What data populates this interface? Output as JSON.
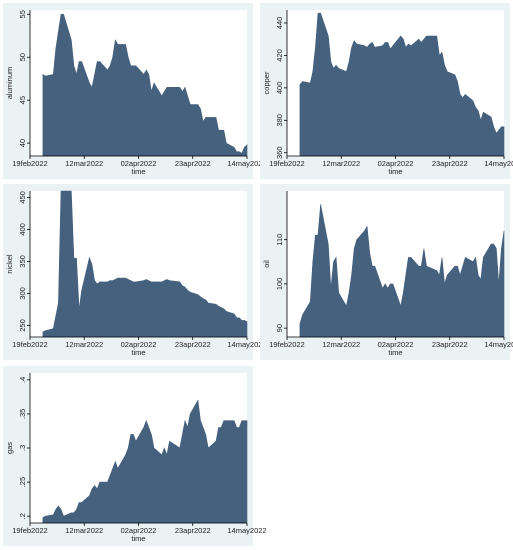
{
  "chart_data": [
    {
      "type": "area",
      "ylabel": "aluminum",
      "xlabel": "time",
      "xlim": [
        "2022-02-19",
        "2022-05-14"
      ],
      "ylim": [
        38.5,
        55.5
      ],
      "xticks": [
        "19feb2022",
        "12mar2022",
        "02apr2022",
        "23apr2022",
        "14may2022"
      ],
      "yticks": [
        40,
        45,
        50,
        55
      ],
      "color": "#45617e",
      "series": [
        {
          "x": [
            "2022-02-24",
            "2022-02-25",
            "2022-02-28",
            "2022-03-01",
            "2022-03-02",
            "2022-03-03",
            "2022-03-04",
            "2022-03-07",
            "2022-03-08",
            "2022-03-09",
            "2022-03-10",
            "2022-03-11",
            "2022-03-14",
            "2022-03-15",
            "2022-03-16",
            "2022-03-17",
            "2022-03-18",
            "2022-03-21",
            "2022-03-22",
            "2022-03-23",
            "2022-03-24",
            "2022-03-25",
            "2022-03-28",
            "2022-03-29",
            "2022-03-30",
            "2022-03-31",
            "2022-04-01",
            "2022-04-04",
            "2022-04-05",
            "2022-04-06",
            "2022-04-07",
            "2022-04-08",
            "2022-04-11",
            "2022-04-12",
            "2022-04-13",
            "2022-04-14",
            "2022-04-18",
            "2022-04-19",
            "2022-04-20",
            "2022-04-21",
            "2022-04-22",
            "2022-04-25",
            "2022-04-26",
            "2022-04-27",
            "2022-04-28",
            "2022-04-29",
            "2022-05-02",
            "2022-05-03",
            "2022-05-04",
            "2022-05-05",
            "2022-05-06",
            "2022-05-09",
            "2022-05-10",
            "2022-05-11",
            "2022-05-12",
            "2022-05-13",
            "2022-05-16"
          ],
          "values": [
            48,
            47.8,
            48,
            51,
            53,
            55,
            55,
            52,
            49,
            48,
            49.5,
            49.5,
            47,
            46.5,
            48,
            49.5,
            49.5,
            48.5,
            49,
            50,
            52,
            51.5,
            51.5,
            50,
            49,
            49,
            49,
            48,
            48.5,
            48,
            46,
            47,
            45.5,
            46,
            46.5,
            46.5,
            46.5,
            46,
            46.5,
            45.5,
            44.5,
            44.5,
            44,
            42.5,
            43,
            43,
            43,
            41.5,
            41.5,
            41.5,
            40,
            39.5,
            39,
            39,
            38.8,
            39.5,
            39.8
          ]
        }
      ]
    },
    {
      "type": "area",
      "ylabel": "copper",
      "xlabel": "time",
      "xlim": [
        "2022-02-19",
        "2022-05-14"
      ],
      "ylim": [
        358,
        448
      ],
      "xticks": [
        "19feb2022",
        "12mar2022",
        "02apr2022",
        "23apr2022",
        "14may2022"
      ],
      "yticks": [
        360,
        380,
        400,
        420,
        440
      ],
      "color": "#45617e",
      "series": [
        {
          "x": [
            "2022-02-24",
            "2022-02-25",
            "2022-02-28",
            "2022-03-01",
            "2022-03-02",
            "2022-03-03",
            "2022-03-04",
            "2022-03-07",
            "2022-03-08",
            "2022-03-09",
            "2022-03-10",
            "2022-03-11",
            "2022-03-14",
            "2022-03-15",
            "2022-03-16",
            "2022-03-17",
            "2022-03-18",
            "2022-03-21",
            "2022-03-22",
            "2022-03-23",
            "2022-03-24",
            "2022-03-25",
            "2022-03-28",
            "2022-03-29",
            "2022-03-30",
            "2022-03-31",
            "2022-04-01",
            "2022-04-04",
            "2022-04-05",
            "2022-04-06",
            "2022-04-07",
            "2022-04-08",
            "2022-04-11",
            "2022-04-12",
            "2022-04-13",
            "2022-04-14",
            "2022-04-18",
            "2022-04-19",
            "2022-04-20",
            "2022-04-21",
            "2022-04-22",
            "2022-04-25",
            "2022-04-26",
            "2022-04-27",
            "2022-04-28",
            "2022-04-29",
            "2022-05-02",
            "2022-05-03",
            "2022-05-04",
            "2022-05-05",
            "2022-05-06",
            "2022-05-09",
            "2022-05-10",
            "2022-05-11",
            "2022-05-12",
            "2022-05-13",
            "2022-05-16"
          ],
          "values": [
            402,
            404,
            403,
            410,
            425,
            446,
            446,
            432,
            416,
            412,
            414,
            412,
            410,
            416,
            425,
            429,
            427,
            426,
            425,
            427,
            428,
            425,
            426,
            428,
            428,
            424,
            426,
            432,
            430,
            425,
            427,
            426,
            430,
            428,
            430,
            432,
            432,
            420,
            422,
            414,
            410,
            408,
            404,
            396,
            394,
            396,
            392,
            388,
            386,
            380,
            385,
            382,
            376,
            372,
            374,
            376,
            376
          ]
        }
      ]
    },
    {
      "type": "area",
      "ylabel": "nickel",
      "xlabel": "time",
      "xlim": [
        "2022-02-19",
        "2022-05-14"
      ],
      "ylim": [
        232,
        460
      ],
      "xticks": [
        "19feb2022",
        "12mar2022",
        "02apr2022",
        "23apr2022",
        "14may2022"
      ],
      "yticks": [
        250,
        300,
        350,
        400,
        450
      ],
      "color": "#45617e",
      "series": [
        {
          "x": [
            "2022-02-24",
            "2022-02-25",
            "2022-02-28",
            "2022-03-01",
            "2022-03-02",
            "2022-03-03",
            "2022-03-04",
            "2022-03-07",
            "2022-03-08",
            "2022-03-09",
            "2022-03-10",
            "2022-03-11",
            "2022-03-14",
            "2022-03-15",
            "2022-03-16",
            "2022-03-17",
            "2022-03-18",
            "2022-03-21",
            "2022-03-22",
            "2022-03-23",
            "2022-03-24",
            "2022-03-25",
            "2022-03-28",
            "2022-03-29",
            "2022-03-30",
            "2022-03-31",
            "2022-04-01",
            "2022-04-04",
            "2022-04-05",
            "2022-04-06",
            "2022-04-07",
            "2022-04-08",
            "2022-04-11",
            "2022-04-12",
            "2022-04-13",
            "2022-04-14",
            "2022-04-18",
            "2022-04-19",
            "2022-04-20",
            "2022-04-21",
            "2022-04-22",
            "2022-04-25",
            "2022-04-26",
            "2022-04-27",
            "2022-04-28",
            "2022-04-29",
            "2022-05-02",
            "2022-05-03",
            "2022-05-04",
            "2022-05-05",
            "2022-05-06",
            "2022-05-09",
            "2022-05-10",
            "2022-05-11",
            "2022-05-12",
            "2022-05-13",
            "2022-05-16"
          ],
          "values": [
            240,
            242,
            245,
            265,
            285,
            460,
            460,
            460,
            355,
            355,
            275,
            305,
            356,
            345,
            320,
            315,
            318,
            318,
            320,
            320,
            322,
            324,
            324,
            322,
            320,
            318,
            318,
            320,
            322,
            320,
            318,
            318,
            318,
            320,
            322,
            320,
            318,
            312,
            310,
            305,
            302,
            298,
            295,
            292,
            290,
            285,
            283,
            280,
            278,
            276,
            272,
            268,
            262,
            262,
            258,
            258,
            256
          ]
        }
      ]
    },
    {
      "type": "area",
      "ylabel": "oil",
      "xlabel": "time",
      "xlim": [
        "2022-02-19",
        "2022-05-14"
      ],
      "ylim": [
        88,
        121
      ],
      "xticks": [
        "19feb2022",
        "12mar2022",
        "02apr2022",
        "23apr2022",
        "14may2022"
      ],
      "yticks": [
        90,
        100,
        110
      ],
      "color": "#45617e",
      "series": [
        {
          "x": [
            "2022-02-24",
            "2022-02-25",
            "2022-02-28",
            "2022-03-01",
            "2022-03-02",
            "2022-03-03",
            "2022-03-04",
            "2022-03-07",
            "2022-03-08",
            "2022-03-09",
            "2022-03-10",
            "2022-03-11",
            "2022-03-14",
            "2022-03-15",
            "2022-03-16",
            "2022-03-17",
            "2022-03-18",
            "2022-03-21",
            "2022-03-22",
            "2022-03-23",
            "2022-03-24",
            "2022-03-25",
            "2022-03-28",
            "2022-03-29",
            "2022-03-30",
            "2022-03-31",
            "2022-04-01",
            "2022-04-04",
            "2022-04-05",
            "2022-04-06",
            "2022-04-07",
            "2022-04-08",
            "2022-04-11",
            "2022-04-12",
            "2022-04-13",
            "2022-04-14",
            "2022-04-18",
            "2022-04-19",
            "2022-04-20",
            "2022-04-21",
            "2022-04-22",
            "2022-04-25",
            "2022-04-26",
            "2022-04-27",
            "2022-04-28",
            "2022-04-29",
            "2022-05-02",
            "2022-05-03",
            "2022-05-04",
            "2022-05-05",
            "2022-05-06",
            "2022-05-09",
            "2022-05-10",
            "2022-05-11",
            "2022-05-12",
            "2022-05-13",
            "2022-05-16"
          ],
          "values": [
            91,
            93,
            96,
            105,
            111,
            111,
            118,
            109,
            99,
            105,
            106,
            98,
            95,
            98,
            102,
            108,
            110,
            112,
            113,
            107,
            104,
            104,
            99,
            100,
            99,
            100,
            100,
            95,
            98,
            102,
            106,
            106,
            104,
            104,
            108,
            104,
            103,
            102,
            106,
            100,
            102,
            104,
            104,
            102,
            104,
            106,
            105,
            106,
            102,
            101,
            106,
            109,
            109,
            108,
            100,
            108,
            112
          ]
        }
      ]
    },
    {
      "type": "area",
      "ylabel": "gas",
      "xlabel": "time",
      "xlim": [
        "2022-02-19",
        "2022-05-14"
      ],
      "ylim": [
        0.19,
        0.41
      ],
      "xticks": [
        "19feb2022",
        "12mar2022",
        "02apr2022",
        "23apr2022",
        "14may2022"
      ],
      "yticks": [
        ".2",
        ".25",
        ".3",
        ".35",
        ".4"
      ],
      "color": "#45617e",
      "series": [
        {
          "x": [
            "2022-02-24",
            "2022-02-25",
            "2022-02-28",
            "2022-03-01",
            "2022-03-02",
            "2022-03-03",
            "2022-03-04",
            "2022-03-07",
            "2022-03-08",
            "2022-03-09",
            "2022-03-10",
            "2022-03-11",
            "2022-03-14",
            "2022-03-15",
            "2022-03-16",
            "2022-03-17",
            "2022-03-18",
            "2022-03-21",
            "2022-03-22",
            "2022-03-23",
            "2022-03-24",
            "2022-03-25",
            "2022-03-28",
            "2022-03-29",
            "2022-03-30",
            "2022-03-31",
            "2022-04-01",
            "2022-04-04",
            "2022-04-05",
            "2022-04-06",
            "2022-04-07",
            "2022-04-08",
            "2022-04-11",
            "2022-04-12",
            "2022-04-13",
            "2022-04-14",
            "2022-04-18",
            "2022-04-19",
            "2022-04-20",
            "2022-04-21",
            "2022-04-22",
            "2022-04-25",
            "2022-04-26",
            "2022-04-27",
            "2022-04-28",
            "2022-04-29",
            "2022-05-02",
            "2022-05-03",
            "2022-05-04",
            "2022-05-05",
            "2022-05-06",
            "2022-05-09",
            "2022-05-10",
            "2022-05-11",
            "2022-05-12",
            "2022-05-13",
            "2022-05-16"
          ],
          "values": [
            0.198,
            0.2,
            0.202,
            0.21,
            0.215,
            0.21,
            0.2,
            0.205,
            0.205,
            0.21,
            0.22,
            0.22,
            0.23,
            0.24,
            0.245,
            0.24,
            0.25,
            0.25,
            0.26,
            0.27,
            0.28,
            0.27,
            0.29,
            0.3,
            0.32,
            0.32,
            0.31,
            0.33,
            0.34,
            0.33,
            0.32,
            0.3,
            0.29,
            0.3,
            0.29,
            0.31,
            0.3,
            0.32,
            0.34,
            0.33,
            0.35,
            0.37,
            0.34,
            0.33,
            0.32,
            0.3,
            0.31,
            0.33,
            0.33,
            0.34,
            0.34,
            0.34,
            0.33,
            0.33,
            0.34,
            0.34,
            0.34
          ]
        }
      ]
    }
  ]
}
